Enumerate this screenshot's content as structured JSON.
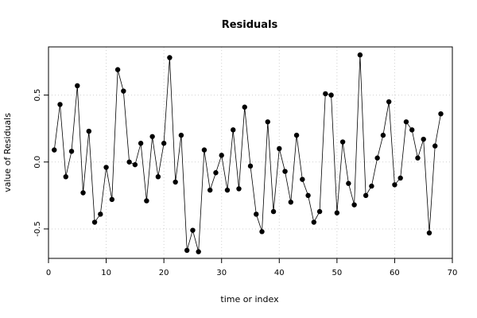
{
  "chart_data": {
    "type": "line",
    "title": "Residuals",
    "xlabel": "time or index",
    "ylabel": "value of Residuals",
    "xlim": [
      0,
      70
    ],
    "ylim": [
      -0.72,
      0.86
    ],
    "xticks": [
      0,
      10,
      20,
      30,
      40,
      50,
      60,
      70
    ],
    "yticks": [
      -0.5,
      0.0,
      0.5
    ],
    "ytick_labels": [
      "-0.5",
      "0.0",
      "0.5"
    ],
    "grid": true,
    "grid_style": "dotted",
    "marker": "filled-circle",
    "line_color": "#000000",
    "series": [
      {
        "x": [
          1,
          2,
          3,
          4,
          5,
          6,
          7,
          8,
          9,
          10,
          11,
          12,
          13,
          14,
          15,
          16,
          17,
          18,
          19,
          20,
          21,
          22,
          23,
          24,
          25,
          26,
          27,
          28,
          29,
          30,
          31,
          32,
          33,
          34,
          35,
          36,
          37,
          38,
          39,
          40,
          41,
          42,
          43,
          44,
          45,
          46,
          47,
          48,
          49,
          50,
          51,
          52,
          53,
          54,
          55,
          56,
          57,
          58,
          59,
          60,
          61,
          62,
          63,
          64,
          65,
          66,
          67,
          68
        ],
        "y": [
          0.09,
          0.43,
          -0.11,
          0.08,
          0.57,
          -0.23,
          0.23,
          -0.45,
          -0.39,
          -0.04,
          -0.28,
          0.69,
          0.53,
          0.0,
          -0.02,
          0.14,
          -0.29,
          0.19,
          -0.11,
          0.14,
          0.78,
          -0.15,
          0.2,
          -0.66,
          -0.51,
          -0.67,
          0.09,
          -0.21,
          -0.08,
          0.05,
          -0.21,
          0.24,
          -0.2,
          0.41,
          -0.03,
          -0.39,
          -0.52,
          0.3,
          -0.37,
          0.1,
          -0.07,
          -0.3,
          0.2,
          -0.13,
          -0.25,
          -0.45,
          -0.37,
          0.51,
          0.5,
          -0.38,
          0.15,
          -0.16,
          -0.32,
          0.8,
          -0.25,
          -0.18,
          0.03,
          0.2,
          0.45,
          -0.17,
          -0.12,
          0.3,
          0.24,
          0.03,
          0.17,
          -0.53,
          0.12,
          0.36
        ]
      }
    ]
  }
}
